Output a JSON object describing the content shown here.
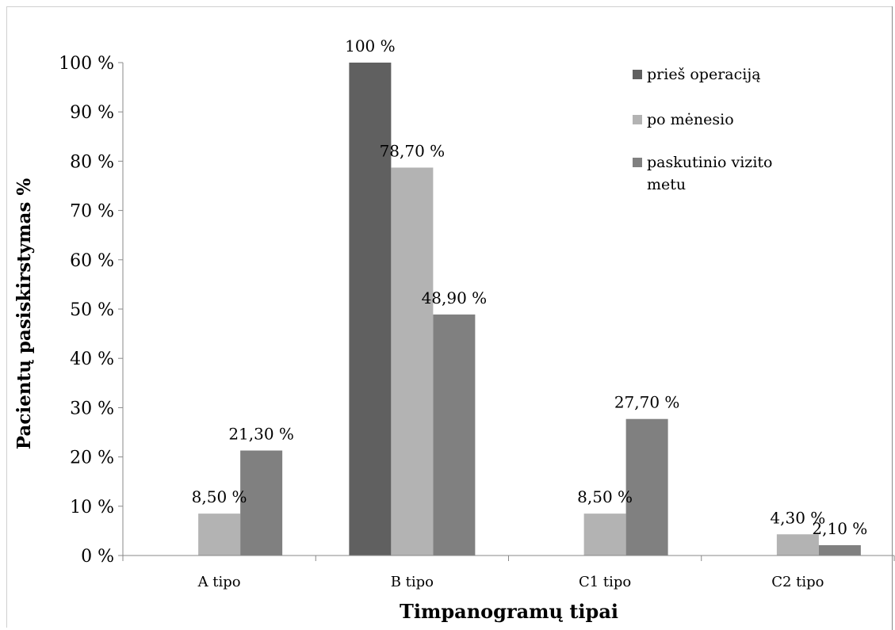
{
  "chart_data": {
    "type": "bar",
    "title": "",
    "xlabel": "Timpanogramų tipai",
    "ylabel": "Pacientų pasiskirstymas  %",
    "categories": [
      "A tipo",
      "B tipo",
      "C1 tipo",
      "C2 tipo"
    ],
    "yticks": [
      "0 %",
      "10 %",
      "20 %",
      "30 %",
      "40 %",
      "50 %",
      "60 %",
      "70 %",
      "80 %",
      "90 %",
      "100 %"
    ],
    "ylim": [
      0,
      100
    ],
    "grid": false,
    "legend_position": "top-right",
    "series": [
      {
        "name": "prieš operaciją",
        "color": "#606060",
        "values": [
          0,
          100,
          0,
          0
        ],
        "labels": [
          "",
          "100 %",
          "",
          ""
        ]
      },
      {
        "name": "po mėnesio",
        "color": "#b3b3b3",
        "values": [
          8.5,
          78.7,
          8.5,
          4.3
        ],
        "labels": [
          "8,50 %",
          "78,70 %",
          "8,50 %",
          "4,30 %"
        ]
      },
      {
        "name": "paskutinio vizito metu",
        "color": "#808080",
        "values": [
          21.3,
          48.9,
          27.7,
          2.1
        ],
        "labels": [
          "21,30 %",
          "48,90 %",
          "27,70 %",
          "2,10 %"
        ]
      }
    ]
  }
}
